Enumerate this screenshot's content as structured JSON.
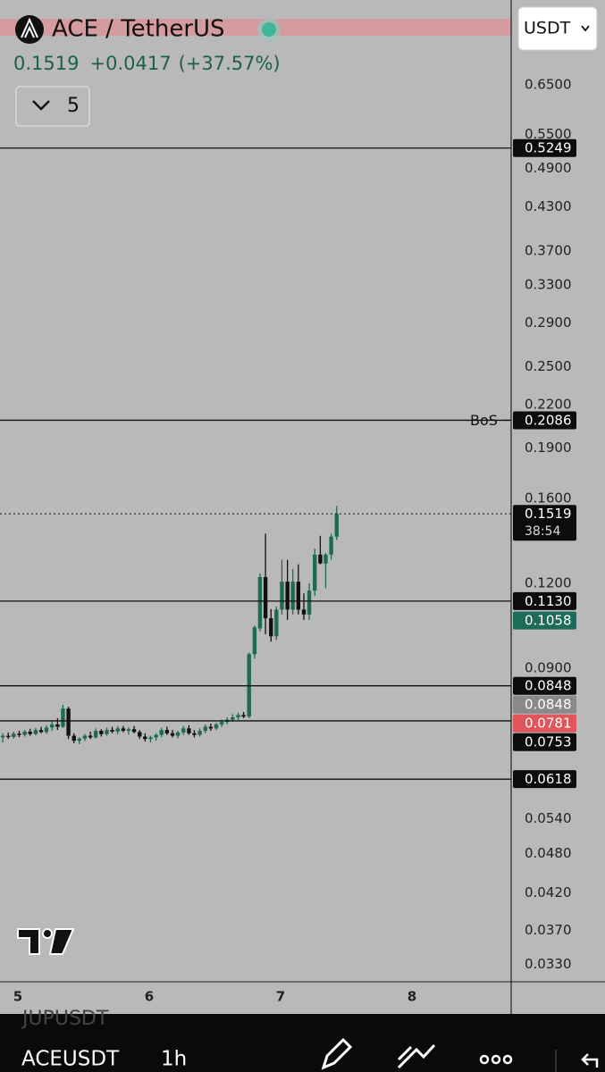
{
  "header": {
    "symbol": "ACE / TetherUS",
    "price": "0.1519",
    "change": "+0.0417",
    "change_percent": "(+37.57%)",
    "interval_value": "5",
    "currency": "USDT"
  },
  "toolbar": {
    "previous_symbol": "JUPUSDT",
    "symbol": "ACEUSDT",
    "interval": "1h"
  },
  "chart_data": {
    "type": "candlestick",
    "log_scale": true,
    "up_color": "#1e6b55",
    "down_color": "#111111",
    "xlim": [
      4.864,
      8.755
    ],
    "xticks": [
      5,
      6,
      7,
      8
    ],
    "ylim": [
      0.031,
      0.867
    ],
    "yticks": [
      {
        "value": 0.65,
        "label": "0.6500"
      },
      {
        "value": 0.55,
        "label": "0.5500"
      },
      {
        "value": 0.49,
        "label": "0.4900"
      },
      {
        "value": 0.43,
        "label": "0.4300"
      },
      {
        "value": 0.37,
        "label": "0.3700"
      },
      {
        "value": 0.33,
        "label": "0.3300"
      },
      {
        "value": 0.29,
        "label": "0.2900"
      },
      {
        "value": 0.25,
        "label": "0.2500"
      },
      {
        "value": 0.22,
        "label": "0.2200"
      },
      {
        "value": 0.19,
        "label": "0.1900"
      },
      {
        "value": 0.16,
        "label": "0.1600"
      },
      {
        "value": 0.12,
        "label": "0.1200"
      },
      {
        "value": 0.09,
        "label": "0.0900"
      },
      {
        "value": 0.054,
        "label": "0.0540"
      },
      {
        "value": 0.048,
        "label": "0.0480"
      },
      {
        "value": 0.042,
        "label": "0.0420"
      },
      {
        "value": 0.037,
        "label": "0.0370"
      },
      {
        "value": 0.033,
        "label": "0.0330"
      }
    ],
    "x": [
      4.885,
      4.927,
      4.968,
      5.01,
      5.052,
      5.093,
      5.135,
      5.177,
      5.218,
      5.26,
      5.302,
      5.343,
      5.385,
      5.427,
      5.468,
      5.51,
      5.552,
      5.593,
      5.635,
      5.677,
      5.718,
      5.76,
      5.802,
      5.843,
      5.885,
      5.927,
      5.968,
      6.01,
      6.052,
      6.093,
      6.135,
      6.177,
      6.218,
      6.26,
      6.302,
      6.343,
      6.385,
      6.427,
      6.468,
      6.51,
      6.552,
      6.593,
      6.635,
      6.677,
      6.718,
      6.76,
      6.802,
      6.843,
      6.885,
      6.927,
      6.968,
      7.01,
      7.052,
      7.093,
      7.135,
      7.177,
      7.218,
      7.26,
      7.302,
      7.343,
      7.385,
      7.427
    ],
    "open": [
      0.0712,
      0.0716,
      0.0713,
      0.0721,
      0.0718,
      0.0726,
      0.072,
      0.073,
      0.0725,
      0.0736,
      0.0744,
      0.0738,
      0.0785,
      0.0716,
      0.0704,
      0.0709,
      0.0716,
      0.0712,
      0.0728,
      0.072,
      0.073,
      0.0726,
      0.0734,
      0.0728,
      0.0732,
      0.0725,
      0.0714,
      0.0708,
      0.0712,
      0.0718,
      0.073,
      0.0722,
      0.0716,
      0.0724,
      0.0734,
      0.0722,
      0.0718,
      0.0728,
      0.0738,
      0.0734,
      0.0744,
      0.075,
      0.0756,
      0.0762,
      0.0768,
      0.0764,
      0.0944,
      0.103,
      0.1226,
      0.1066,
      0.1003,
      0.1098,
      0.1207,
      0.1098,
      0.1207,
      0.1098,
      0.108,
      0.1171,
      0.1323,
      0.1284,
      0.1323,
      0.1406
    ],
    "high": [
      0.0722,
      0.0724,
      0.0726,
      0.0728,
      0.073,
      0.0733,
      0.0735,
      0.0738,
      0.0742,
      0.0752,
      0.076,
      0.0795,
      0.079,
      0.0722,
      0.0712,
      0.072,
      0.0726,
      0.0734,
      0.0732,
      0.0736,
      0.0738,
      0.074,
      0.074,
      0.0737,
      0.074,
      0.073,
      0.0722,
      0.0716,
      0.0722,
      0.0736,
      0.0738,
      0.073,
      0.0728,
      0.074,
      0.0742,
      0.073,
      0.0734,
      0.0744,
      0.0746,
      0.0748,
      0.0756,
      0.0762,
      0.077,
      0.0774,
      0.0776,
      0.095,
      0.104,
      0.124,
      0.142,
      0.11,
      0.111,
      0.13,
      0.13,
      0.126,
      0.128,
      0.116,
      0.12,
      0.135,
      0.141,
      0.133,
      0.142,
      0.156
    ],
    "low": [
      0.07,
      0.0708,
      0.0709,
      0.0712,
      0.0714,
      0.0716,
      0.0717,
      0.0722,
      0.0721,
      0.0728,
      0.073,
      0.0735,
      0.0708,
      0.0698,
      0.0696,
      0.0703,
      0.0708,
      0.0709,
      0.0714,
      0.0716,
      0.0722,
      0.072,
      0.0724,
      0.0719,
      0.0722,
      0.0708,
      0.0702,
      0.07,
      0.0704,
      0.0712,
      0.0718,
      0.0712,
      0.071,
      0.0718,
      0.0718,
      0.0712,
      0.0714,
      0.0722,
      0.0728,
      0.073,
      0.0738,
      0.0744,
      0.075,
      0.0755,
      0.076,
      0.076,
      0.093,
      0.102,
      0.101,
      0.0985,
      0.099,
      0.108,
      0.106,
      0.108,
      0.108,
      0.106,
      0.106,
      0.115,
      0.128,
      0.118,
      0.13,
      0.139
    ],
    "close": [
      0.0716,
      0.0713,
      0.0721,
      0.0718,
      0.0726,
      0.072,
      0.073,
      0.0725,
      0.0736,
      0.0744,
      0.0738,
      0.0785,
      0.0716,
      0.0704,
      0.0709,
      0.0716,
      0.0712,
      0.0728,
      0.072,
      0.073,
      0.0726,
      0.0734,
      0.0728,
      0.0732,
      0.0725,
      0.0714,
      0.0708,
      0.0712,
      0.0718,
      0.073,
      0.0722,
      0.0716,
      0.0724,
      0.0734,
      0.0722,
      0.0718,
      0.0728,
      0.0738,
      0.0734,
      0.0744,
      0.075,
      0.0756,
      0.0762,
      0.0768,
      0.0764,
      0.0944,
      0.1034,
      0.1226,
      0.1066,
      0.1003,
      0.1098,
      0.1207,
      0.1098,
      0.1207,
      0.1098,
      0.108,
      0.1171,
      0.1323,
      0.1284,
      0.1323,
      0.1406,
      0.1519
    ],
    "levels": [
      {
        "value": 0.5249,
        "label": "0.5249"
      },
      {
        "value": 0.2086,
        "label": "0.2086",
        "annotation": "BoS"
      },
      {
        "value": 0.113,
        "label": "0.1130"
      },
      {
        "value": 0.0848,
        "label": "0.0848"
      },
      {
        "value": 0.0753,
        "label": "0.0753"
      },
      {
        "value": 0.0618,
        "label": "0.0618"
      }
    ],
    "price_marks": [
      {
        "value": 0.1058,
        "label": "0.1058",
        "color": "#1e6b5a"
      },
      {
        "value": 0.0848,
        "label": "0.0848",
        "color": "#8a8a8a"
      },
      {
        "value": 0.0781,
        "label": "0.0781",
        "color": "#e0565b"
      }
    ],
    "last_price": {
      "value": 0.1519,
      "label": "0.1519",
      "countdown": "38:54"
    }
  }
}
